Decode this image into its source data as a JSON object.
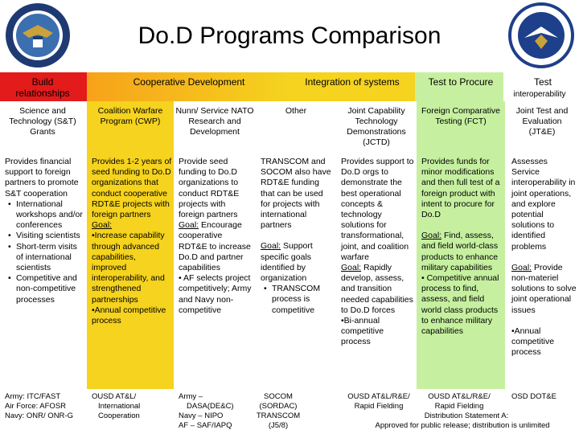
{
  "title": "Do.D Programs Comparison",
  "headers": {
    "build": "Build relationships",
    "coop": "Cooperative Development",
    "integ": "Integration of systems",
    "procure": "Test to Procure",
    "test": "Test",
    "test_sub": "interoperability"
  },
  "subheads": {
    "c1": "Science and Technology (S&T) Grants",
    "c2": "Coalition Warfare Program (CWP)",
    "c3": "Nunn/ Service NATO Research and Development",
    "c4": "Other",
    "c5": "Joint Capability Technology Demonstrations (JCTD)",
    "c6": "Foreign Comparative Testing (FCT)",
    "c7": "Joint Test and Evaluation (JT&E)"
  },
  "body": {
    "c1_intro": "Provides financial support to foreign partners to promote S&T cooperation",
    "c1_bullets": [
      "International workshops and/or conferences",
      "Visiting scientists",
      "Short-term visits of international scientists",
      "Competitive and non-competitive processes"
    ],
    "c2_a": "Provides 1-2 years of seed funding to Do.D organizations that conduct cooperative RDT&E projects with foreign partners",
    "c2_goal": "Goal:",
    "c2_b": "•Increase capability through advanced capabilities, improved interoperability, and strengthened partnerships",
    "c2_c": "•Annual competitive process",
    "c3_a": "Provide seed funding to Do.D organizations to conduct RDT&E projects with foreign partners",
    "c3_goal": "Goal:",
    "c3_b": " Encourage cooperative RDT&E to increase Do.D and partner capabilities",
    "c3_c": "• AF selects project competitively; Army and Navy non-competitive",
    "c4_a": "TRANSCOM and SOCOM also have RDT&E funding that can be used for projects with international partners",
    "c4_goal": "Goal:",
    "c4_b": " Support specific goals identified by organization",
    "c4_bullet": "TRANSCOM process is competitive",
    "c5_a": "Provides support to Do.D orgs to demonstrate the best operational concepts & technology solutions for transformational, joint, and coalition warfare",
    "c5_goal": "Goal:",
    "c5_b": " Rapidly develop, assess, and transition needed capabilities to Do.D forces",
    "c5_c": "•Bi-annual competitive process",
    "c6_a": "Provides funds for minor modifications and then full test of a foreign product with intent to procure for Do.D",
    "c6_goal": "Goal:",
    "c6_b": "  Find, assess, and field world-class products to enhance military capabilities",
    "c6_c": "• Competitive annual process to find, assess, and field world class products to enhance military capabilities",
    "c7_a": "Assesses Service interoperability in joint operations, and explore potential solutions to identified problems",
    "c7_goal": "Goal:",
    "c7_b": " Provide non-materiel solutions to solve joint operational issues",
    "c7_c": "•Annual competitive process"
  },
  "footer": {
    "c1": [
      "Army: ITC/FAST",
      "Air Force: AFOSR",
      "Navy: ONR/ ONR-G"
    ],
    "c2": [
      "OUSD AT&L/",
      "International",
      "Cooperation"
    ],
    "c3": [
      "Army –",
      "DASA(DE&C)",
      "Navy – NIPO",
      "AF – SAF/IAPQ"
    ],
    "c4": [
      "SOCOM",
      "(SORDAC)",
      "TRANSCOM",
      "(J5/8)"
    ],
    "c5": "OUSD AT&L/R&E/",
    "c5b": "Rapid Fielding",
    "c6": "OUSD AT&L/R&E/",
    "c6b": "Rapid Fielding",
    "c7": "OSD DOT&E",
    "distribution": "Distribution Statement A:",
    "approved": "Approved for public release; distribution is unlimited"
  },
  "colors": {
    "red": "#e31b1b",
    "orange": "#f7a21a",
    "yellow": "#f5d31e",
    "green": "#c6f0a0"
  }
}
